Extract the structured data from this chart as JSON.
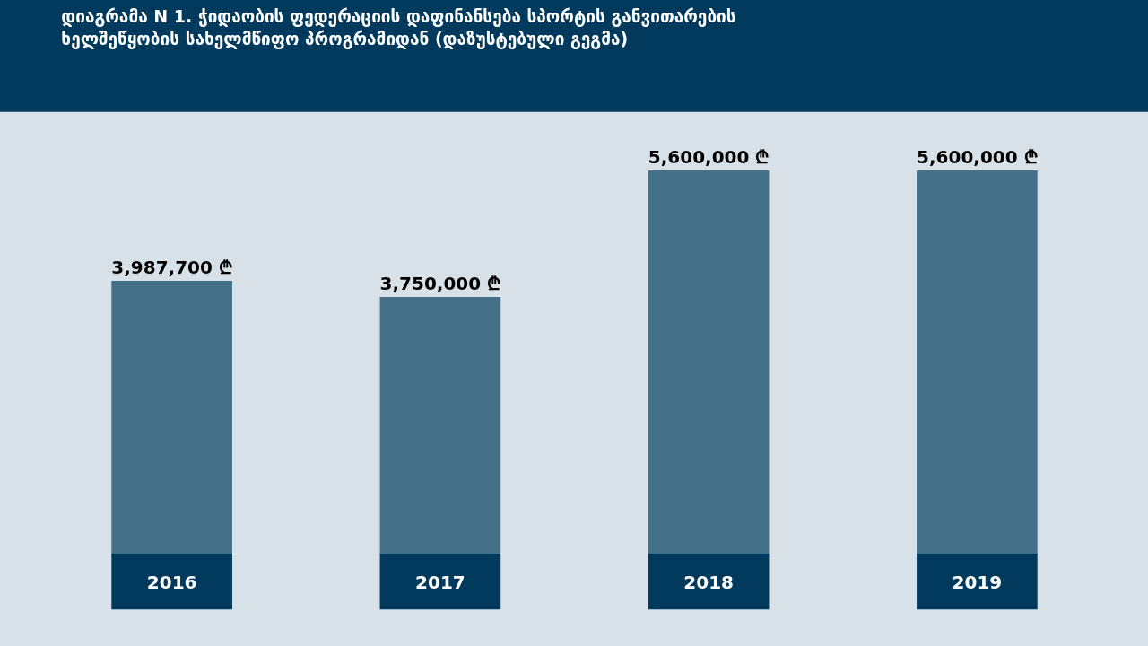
{
  "chart_data": {
    "type": "bar",
    "title": "დიაგრამა N 1. ჭიდაობის ფედერაციის დაფინანსება სპორტის განვითარების ხელშეწყობის სახელმწიფო პროგრამიდან (დაზუსტებული გეგმა)",
    "categories": [
      "2016",
      "2017",
      "2018",
      "2019"
    ],
    "values": [
      3987700,
      3750000,
      5600000,
      5600000
    ],
    "value_labels": [
      "3,987,700 ₾",
      "3,750,000 ₾",
      "5,600,000 ₾",
      "5,600,000 ₾"
    ],
    "color": "#44708a",
    "grid": false,
    "legend": false
  }
}
